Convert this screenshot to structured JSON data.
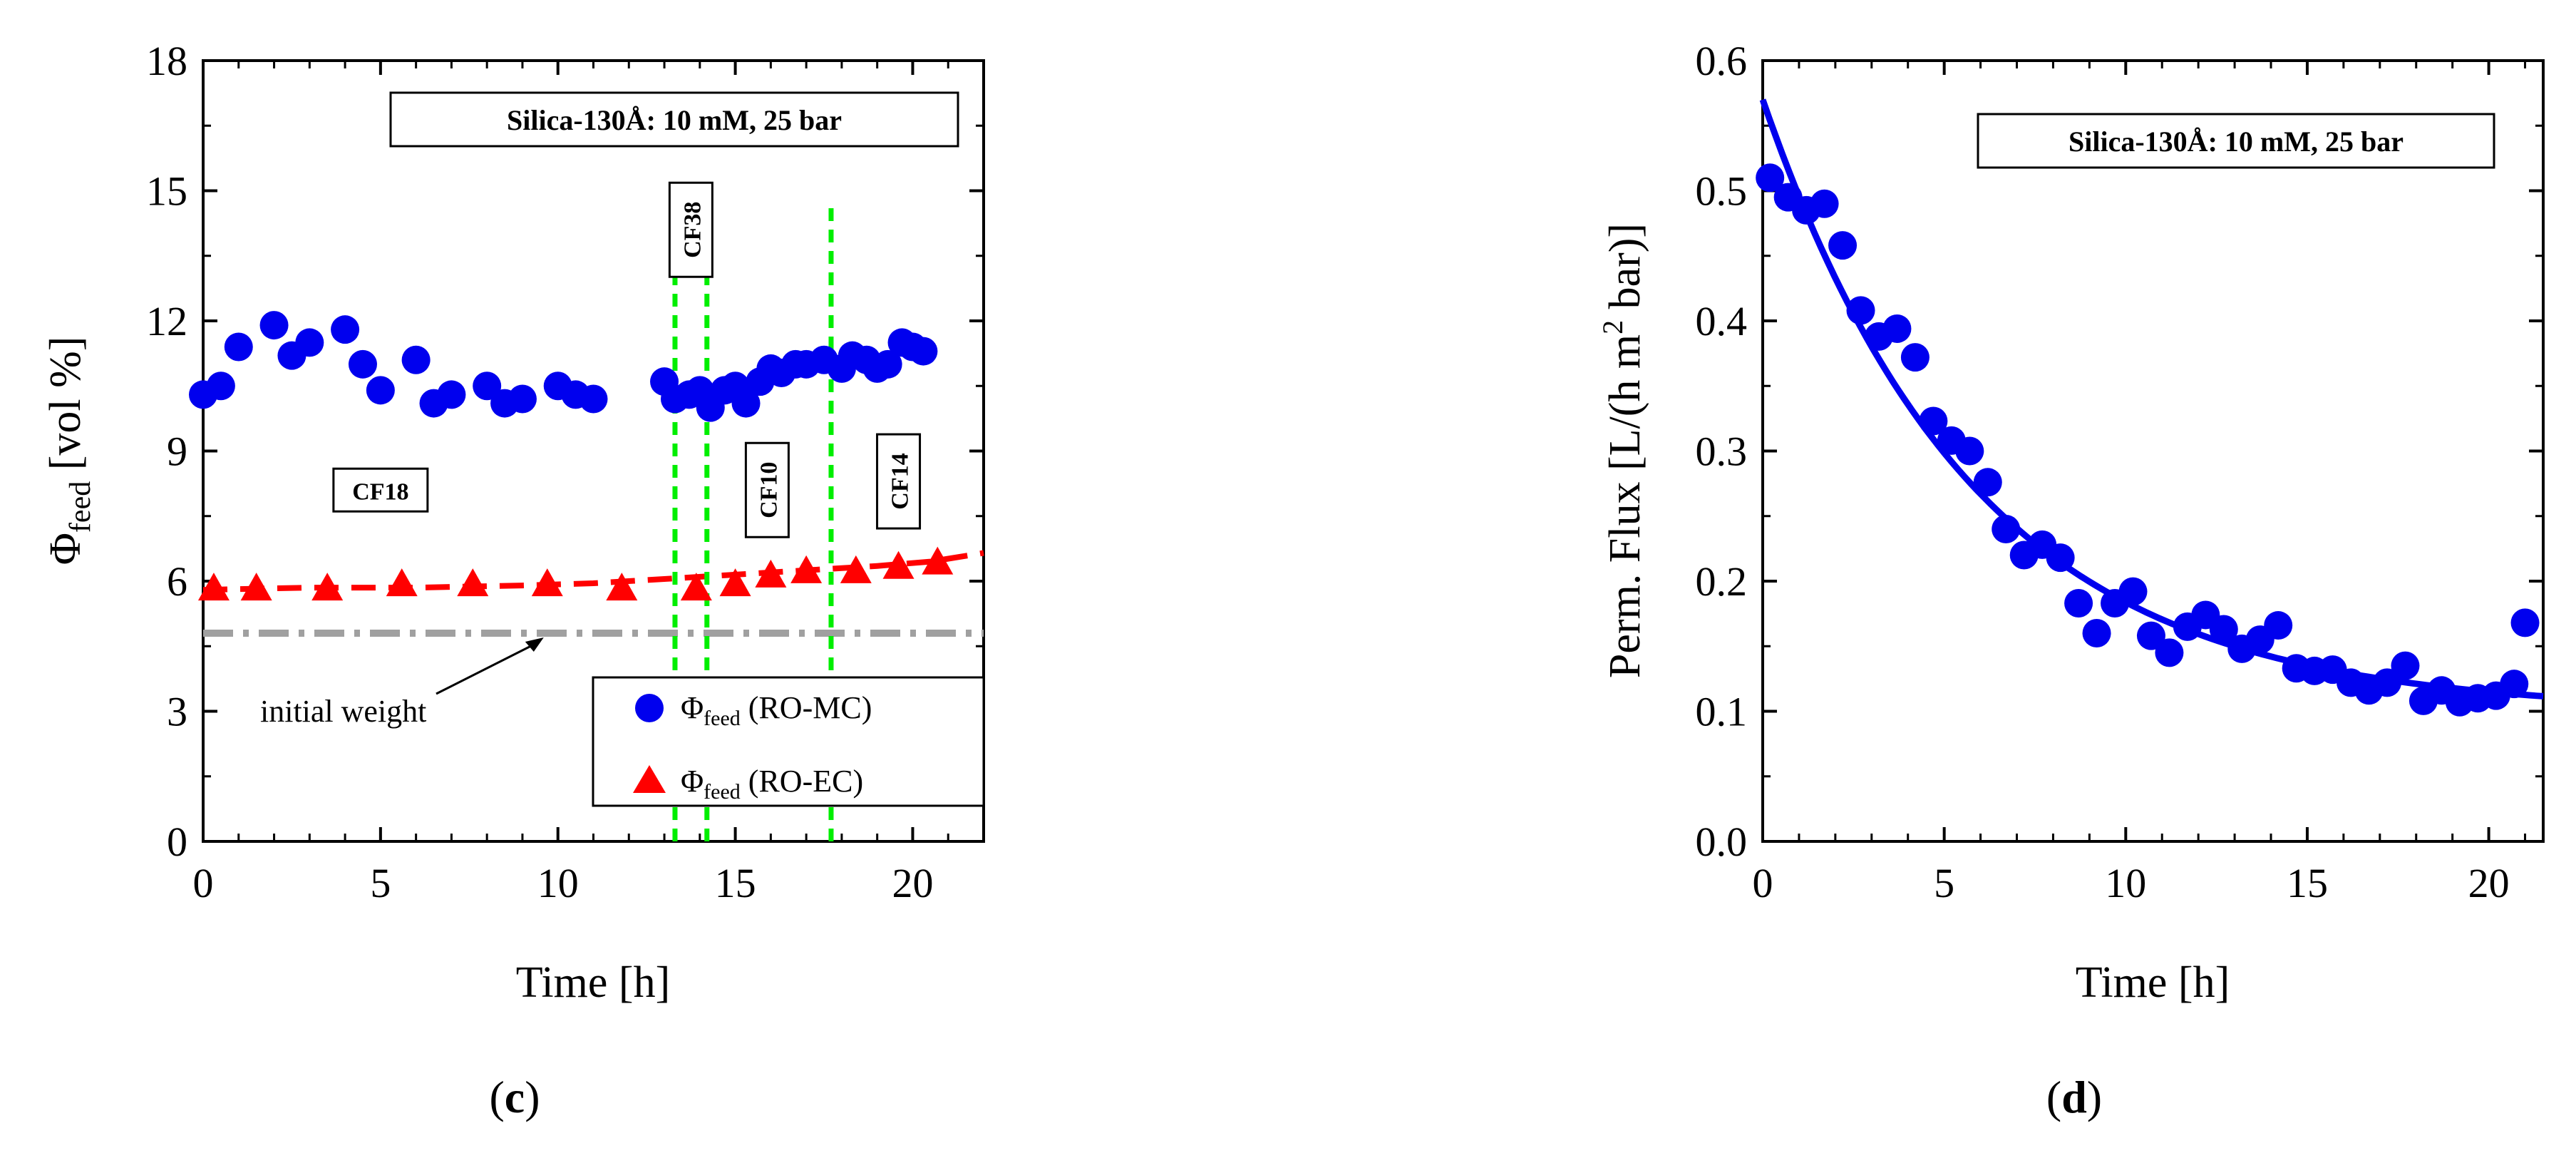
{
  "colors": {
    "mc": "#0000ee",
    "ec": "#ff0000",
    "initial": "#a0a0a0",
    "marker_line": "#00ee00",
    "fit": "#0000ee"
  },
  "chart_data": [
    {
      "type": "scatter",
      "panel_label": {
        "open": "(",
        "letter": "c",
        "close": ")"
      },
      "annotation": "Silica-130Å: 10 mM, 25 bar",
      "xlabel": "Time [h]",
      "ylabel": {
        "symbol": "Φ",
        "sub": "feed",
        "rest": " [vol %]"
      },
      "xlim": [
        0,
        22
      ],
      "ylim": [
        0,
        18
      ],
      "xticks": [
        "0",
        "5",
        "10",
        "15",
        "20"
      ],
      "yticks": [
        "0",
        "3",
        "6",
        "9",
        "12",
        "15",
        "18"
      ],
      "series": [
        {
          "name": "Φfeed (RO-MC)",
          "legend": {
            "symbol": "Φ",
            "sub": "feed",
            "rest": " (RO-MC)"
          },
          "marker": "circle",
          "x": [
            0.0,
            0.5,
            1.0,
            2.0,
            2.5,
            3.0,
            4.0,
            4.5,
            5.0,
            6.0,
            6.5,
            7.0,
            8.0,
            8.5,
            9.0,
            10.0,
            10.5,
            11.0,
            13.0,
            13.3,
            13.7,
            14.0,
            14.3,
            14.7,
            15.0,
            15.3,
            15.7,
            16.0,
            16.3,
            16.7,
            17.0,
            17.5,
            18.0,
            18.3,
            18.7,
            19.0,
            19.3,
            19.7,
            20.0,
            20.3
          ],
          "y": [
            10.3,
            10.5,
            11.4,
            11.9,
            11.2,
            11.5,
            11.8,
            11.0,
            10.4,
            11.1,
            10.1,
            10.3,
            10.5,
            10.1,
            10.2,
            10.5,
            10.3,
            10.2,
            10.6,
            10.2,
            10.3,
            10.4,
            10.0,
            10.4,
            10.5,
            10.1,
            10.6,
            10.9,
            10.8,
            11.0,
            11.0,
            11.1,
            10.9,
            11.2,
            11.1,
            10.9,
            11.0,
            11.5,
            11.4,
            11.3
          ]
        },
        {
          "name": "Φfeed (RO-EC)",
          "legend": {
            "symbol": "Φ",
            "sub": "feed",
            "rest": " (RO-EC)"
          },
          "marker": "triangle",
          "x": [
            0.3,
            1.5,
            3.5,
            5.6,
            7.6,
            9.7,
            11.8,
            13.9,
            15.0,
            16.0,
            17.0,
            18.4,
            19.6,
            20.7
          ],
          "y": [
            5.8,
            5.8,
            5.8,
            5.9,
            5.9,
            5.9,
            5.8,
            5.8,
            5.9,
            6.1,
            6.2,
            6.2,
            6.3,
            6.4
          ]
        }
      ],
      "trend_ec": {
        "x": [
          0,
          3,
          6,
          9,
          11,
          13,
          15,
          17,
          19,
          20.5,
          22
        ],
        "y": [
          5.8,
          5.85,
          5.85,
          5.9,
          5.95,
          6.05,
          6.15,
          6.25,
          6.35,
          6.45,
          6.65
        ]
      },
      "initial_line": {
        "y": 4.8,
        "label": "initial weight",
        "arrow_to_x": 9.6
      },
      "markers": [
        {
          "x": 13.3,
          "top": 13.0
        },
        {
          "x": 14.2,
          "top": 13.0
        },
        {
          "x": 17.7,
          "top": 14.6
        }
      ],
      "cf_labels": [
        {
          "text": "CF18",
          "x": 5.0,
          "y": 8.1,
          "rotate": false
        },
        {
          "text": "CF38",
          "x": 13.75,
          "y": 14.1,
          "rotate": true
        },
        {
          "text": "CF10",
          "x": 15.9,
          "y": 8.1,
          "rotate": true
        },
        {
          "text": "CF14",
          "x": 19.6,
          "y": 8.3,
          "rotate": true
        }
      ]
    },
    {
      "type": "scatter",
      "panel_label": {
        "open": "(",
        "letter": "d",
        "close": ")"
      },
      "annotation": "Silica-130Å: 10 mM, 25 bar",
      "xlabel": "Time [h]",
      "ylabel": {
        "a": "Perm. Flux [L/(h m",
        "sup": "2",
        "b": " bar)]"
      },
      "xlim": [
        0,
        21.5
      ],
      "ylim": [
        0.0,
        0.6
      ],
      "xticks": [
        "0",
        "5",
        "10",
        "15",
        "20"
      ],
      "yticks": [
        "0.0",
        "0.1",
        "0.2",
        "0.3",
        "0.4",
        "0.5",
        "0.6"
      ],
      "series": [
        {
          "name": "Perm. Flux",
          "marker": "circle",
          "x": [
            0.2,
            0.7,
            1.2,
            1.7,
            2.2,
            2.7,
            3.2,
            3.7,
            4.2,
            4.7,
            5.2,
            5.7,
            6.2,
            6.7,
            7.2,
            7.7,
            8.2,
            8.7,
            9.2,
            9.7,
            10.2,
            10.7,
            11.2,
            11.7,
            12.2,
            12.7,
            13.2,
            13.7,
            14.2,
            14.7,
            15.2,
            15.7,
            16.2,
            16.7,
            17.2,
            17.7,
            18.2,
            18.7,
            19.2,
            19.7,
            20.2,
            20.7,
            21.0
          ],
          "y": [
            0.51,
            0.495,
            0.485,
            0.49,
            0.458,
            0.408,
            0.388,
            0.394,
            0.372,
            0.323,
            0.308,
            0.3,
            0.276,
            0.24,
            0.22,
            0.228,
            0.218,
            0.183,
            0.16,
            0.183,
            0.192,
            0.158,
            0.145,
            0.165,
            0.174,
            0.163,
            0.148,
            0.155,
            0.166,
            0.133,
            0.131,
            0.132,
            0.122,
            0.116,
            0.122,
            0.135,
            0.108,
            0.116,
            0.107,
            0.11,
            0.112,
            0.121,
            0.168
          ]
        }
      ],
      "fit": {
        "a": 0.47,
        "tau": 5.8,
        "c": 0.1
      }
    }
  ]
}
